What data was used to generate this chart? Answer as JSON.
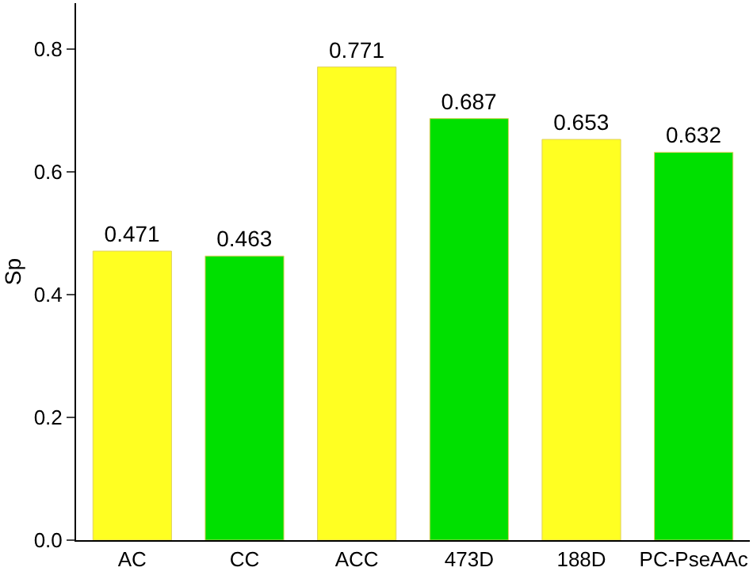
{
  "chart_data": {
    "type": "bar",
    "ylabel": "Sp",
    "categories": [
      "AC",
      "CC",
      "ACC",
      "473D",
      "188D",
      "PC-PseAAc"
    ],
    "values": [
      0.471,
      0.463,
      0.771,
      0.687,
      0.653,
      0.632
    ],
    "colors": [
      "#ffff22",
      "#00e000",
      "#ffff22",
      "#00e000",
      "#ffff22",
      "#00e000"
    ],
    "ylim": [
      0,
      0.875
    ],
    "yticks": [
      {
        "value": 0,
        "label": "0.0"
      },
      {
        "value": 0.2,
        "label": "0.2"
      },
      {
        "value": 0.4,
        "label": "0.4"
      },
      {
        "value": 0.6,
        "label": "0.6"
      },
      {
        "value": 0.8,
        "label": "0.8"
      }
    ],
    "data_labels": true,
    "grid": false,
    "legend": false
  }
}
